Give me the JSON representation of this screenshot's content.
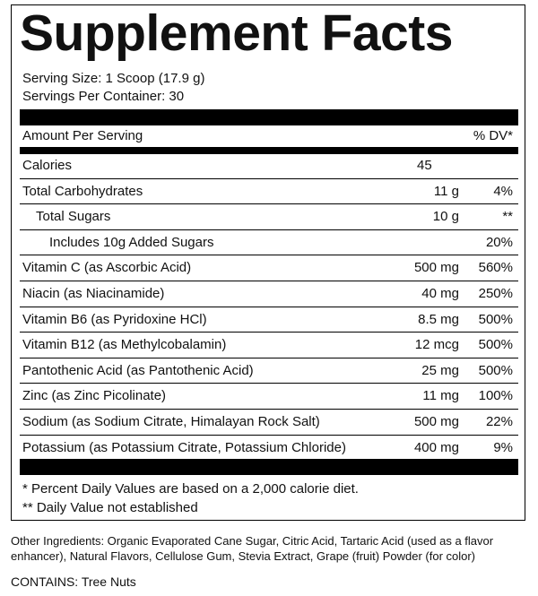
{
  "header": {
    "title": "Supplement Facts"
  },
  "serving": {
    "size": "Serving Size: 1 Scoop (17.9 g)",
    "servings_per_container": "Servings Per Container: 30"
  },
  "columns": {
    "amount_per_serving": "Amount Per Serving",
    "dv": "% DV*"
  },
  "rows": [
    {
      "name": "Calories",
      "amount": "45"
    },
    {
      "name": "Total Carbohydrates",
      "amount": "11 g",
      "dv": "4%"
    },
    {
      "name": "Total Sugars",
      "amount": "10 g",
      "dv": "**"
    },
    {
      "name": "Includes 10g Added Sugars",
      "dv": "20%"
    },
    {
      "name": "Vitamin C (as Ascorbic Acid)",
      "amount": "500 mg",
      "dv": "560%"
    },
    {
      "name": "Niacin (as Niacinamide)",
      "amount": "40 mg",
      "dv": "250%"
    },
    {
      "name": "Vitamin B6 (as Pyridoxine HCl)",
      "amount": "8.5 mg",
      "dv": "500%"
    },
    {
      "name": "Vitamin B12 (as Methylcobalamin)",
      "amount": "12 mcg",
      "dv": "500%"
    },
    {
      "name": "Pantothenic Acid (as Pantothenic Acid)",
      "amount": "25 mg",
      "dv": "500%"
    },
    {
      "name": "Zinc (as Zinc Picolinate)",
      "amount": "11 mg",
      "dv": "100%"
    },
    {
      "name": "Sodium (as Sodium Citrate, Himalayan Rock Salt)",
      "amount": "500 mg",
      "dv": "22%"
    },
    {
      "name": "Potassium (as Potassium Citrate, Potassium Chloride)",
      "amount": "400 mg",
      "dv": "9%"
    }
  ],
  "footnotes": [
    "* Percent Daily Values are based on a 2,000 calorie diet.",
    "** Daily Value not established"
  ],
  "other_ingredients": "Other Ingredients: Organic Evaporated Cane Sugar, Citric Acid, Tartaric Acid (used as a flavor enhancer), Natural Flavors, Cellulose Gum, Stevia Extract, Grape (fruit) Powder (for color)",
  "contains": "CONTAINS: Tree Nuts"
}
